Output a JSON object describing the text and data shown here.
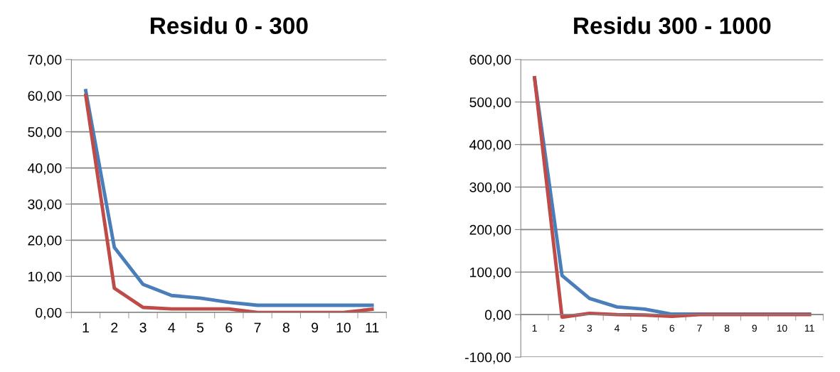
{
  "chart_data": [
    {
      "type": "line",
      "title": "Residu 0 - 300",
      "categories": [
        "1",
        "2",
        "3",
        "4",
        "5",
        "6",
        "7",
        "8",
        "9",
        "10",
        "11"
      ],
      "series": [
        {
          "color": "#4a7ebb",
          "values": [
            61.4,
            18.0,
            7.8,
            4.7,
            4.0,
            2.8,
            2.0,
            2.0,
            2.0,
            2.0,
            2.0
          ]
        },
        {
          "color": "#be4b48",
          "values": [
            60.1,
            6.7,
            1.4,
            1.0,
            1.0,
            1.0,
            0,
            0,
            0,
            0,
            0.9
          ]
        }
      ],
      "ylim": [
        0,
        70
      ],
      "yticks": [
        {
          "value": 0,
          "label": "0,00"
        },
        {
          "value": 10,
          "label": "10,00"
        },
        {
          "value": 20,
          "label": "20,00"
        },
        {
          "value": 30,
          "label": "30,00"
        },
        {
          "value": 40,
          "label": "40,00"
        },
        {
          "value": 50,
          "label": "50,00"
        },
        {
          "value": 60,
          "label": "60,00"
        },
        {
          "value": 70,
          "label": "70,00"
        }
      ],
      "grid": "y",
      "legend": false,
      "marker": "none",
      "line_style": "solid"
    },
    {
      "type": "line",
      "title": "Residu 300 - 1000",
      "categories": [
        "1",
        "2",
        "3",
        "4",
        "5",
        "6",
        "7",
        "8",
        "9",
        "10",
        "11"
      ],
      "series": [
        {
          "color": "#4a7ebb",
          "values": [
            557,
            92,
            38,
            18,
            13,
            1,
            1,
            1,
            1,
            1,
            1
          ]
        },
        {
          "color": "#be4b48",
          "values": [
            557,
            -6,
            3,
            0,
            -1,
            -4,
            0,
            0,
            0,
            0,
            0
          ]
        }
      ],
      "ylim": [
        -100,
        600
      ],
      "yticks": [
        {
          "value": -100,
          "label": "-100,00"
        },
        {
          "value": 0,
          "label": "0,00"
        },
        {
          "value": 100,
          "label": "100,00"
        },
        {
          "value": 200,
          "label": "200,00"
        },
        {
          "value": 300,
          "label": "300,00"
        },
        {
          "value": 400,
          "label": "400,00"
        },
        {
          "value": 500,
          "label": "500,00"
        },
        {
          "value": 600,
          "label": "600,00"
        }
      ],
      "grid": "y",
      "legend": false,
      "marker": "none",
      "line_style": "solid"
    }
  ]
}
